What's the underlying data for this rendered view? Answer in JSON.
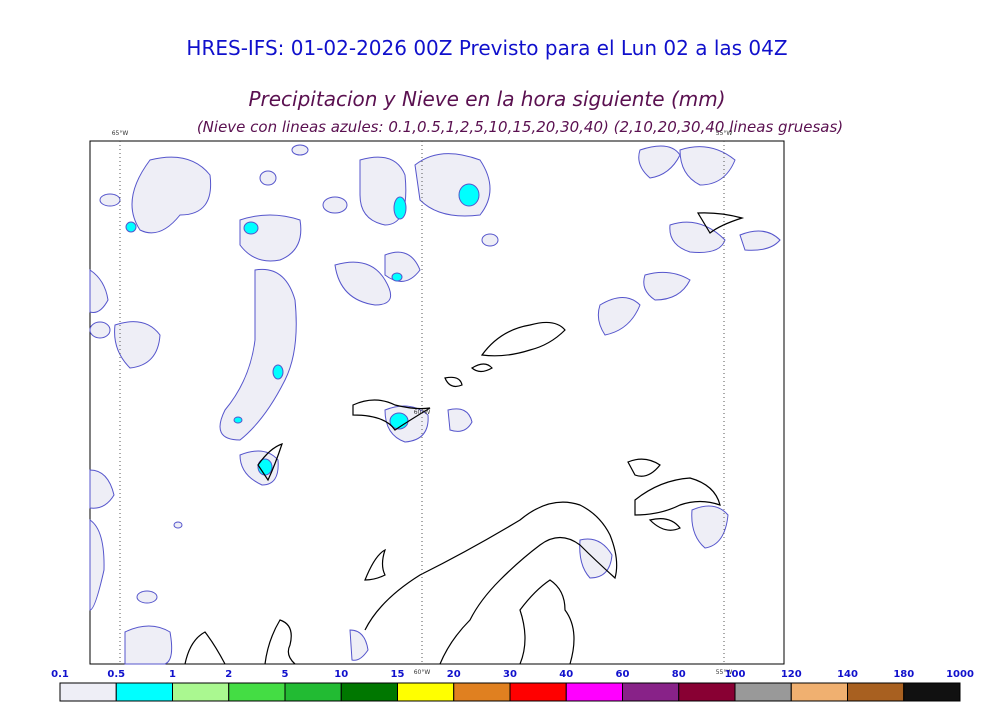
{
  "header": {
    "title": "HRES-IFS: 01-02-2026 00Z Previsto para el Lun 02 a las 04Z",
    "subtitle": "Precipitacion y Nieve en la hora siguiente (mm)",
    "note": "(Nieve con lineas azules: 0.1,0.5,1,2,5,10,15,20,30,40)  (2,10,20,30,40 lineas gruesas)"
  },
  "map": {
    "lon_labels": [
      "65°W",
      "60°W",
      "55°W"
    ]
  },
  "colorbar": {
    "labels": [
      "0.1",
      "0.5",
      "1",
      "2",
      "5",
      "10",
      "15",
      "20",
      "30",
      "40",
      "60",
      "80",
      "100",
      "120",
      "140",
      "180",
      "1000"
    ],
    "colors": [
      "#eeeef6",
      "#00ffff",
      "#aaf890",
      "#44dd44",
      "#22bb33",
      "#007700",
      "#ffff00",
      "#e08020",
      "#ff0000",
      "#ff00ff",
      "#882288",
      "#880033",
      "#999999",
      "#f0b070",
      "#a86020",
      "#111111"
    ]
  }
}
